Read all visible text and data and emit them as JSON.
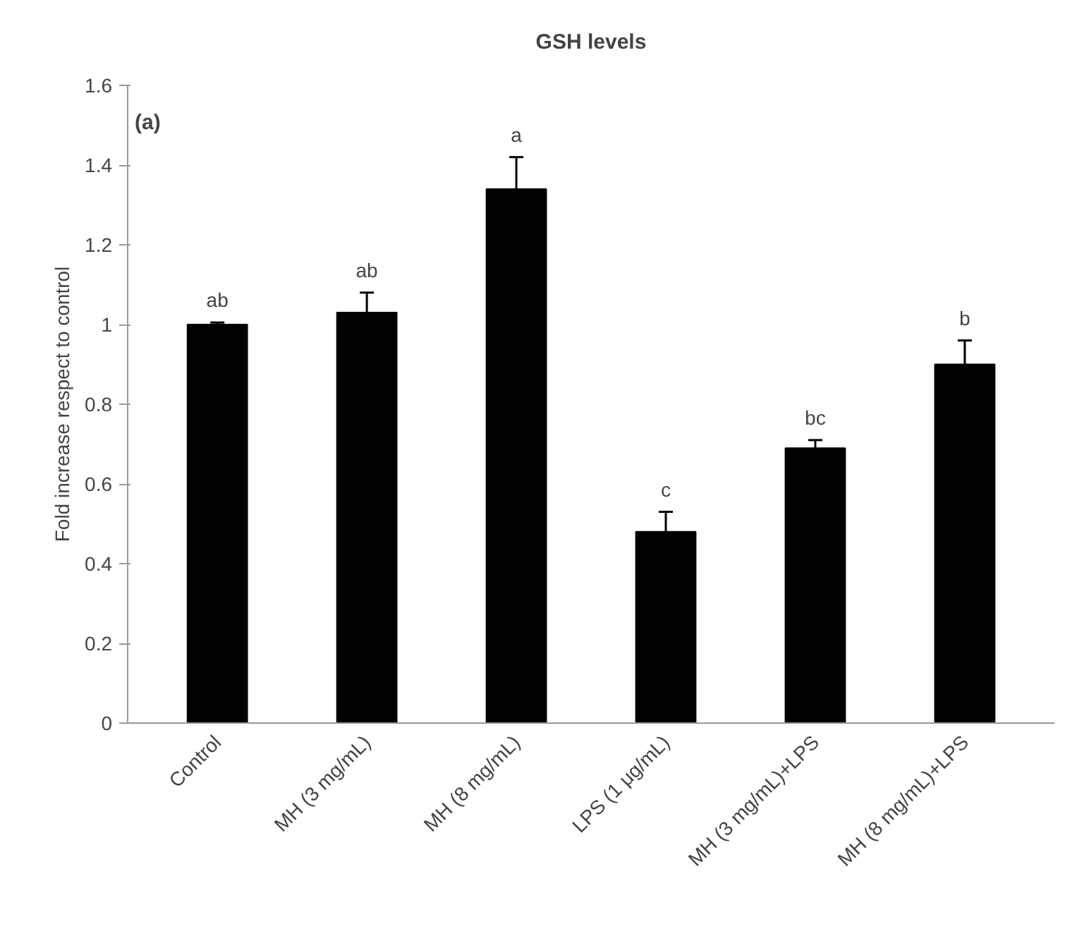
{
  "chart_data": {
    "type": "bar",
    "title": "GSH levels",
    "ylabel": "Fold increase respect to control",
    "categories": [
      "Control",
      "MH (3 mg/mL)",
      "MH (8 mg/mL)",
      "LPS (1 μg/mL)",
      "MH (3 mg/mL)+LPS",
      "MH (8 mg/mL)+LPS"
    ],
    "values": [
      1.0,
      1.03,
      1.34,
      0.48,
      0.69,
      0.9
    ],
    "errors": [
      0.005,
      0.05,
      0.08,
      0.05,
      0.02,
      0.06
    ],
    "color": "#000000",
    "ylim": [
      0,
      1.6
    ],
    "yticks": [
      0,
      0.2,
      0.4,
      0.6,
      0.8,
      1,
      1.2,
      1.4,
      1.6
    ],
    "grid": false,
    "value_labels": [
      "ab",
      "ab",
      "a",
      "c",
      "bc",
      "b"
    ],
    "annotations": [
      "(a)"
    ]
  }
}
